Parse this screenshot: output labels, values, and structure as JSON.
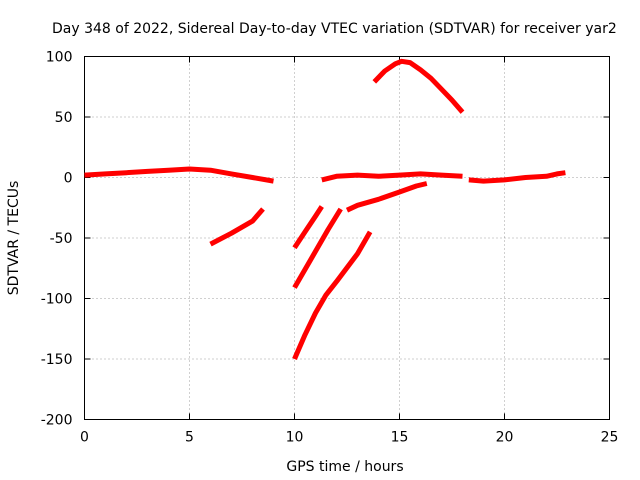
{
  "chart_data": {
    "type": "line",
    "title": "Day 348 of 2022, Sidereal Day-to-day VTEC variation (SDTVAR) for receiver yar2",
    "xlabel": "GPS time / hours",
    "ylabel": "SDTVAR / TECUs",
    "xlim": [
      0,
      25
    ],
    "ylim": [
      -200,
      100
    ],
    "xticks": [
      0,
      5,
      10,
      15,
      20,
      25
    ],
    "yticks": [
      -200,
      -150,
      -100,
      -50,
      0,
      50,
      100
    ],
    "grid": true,
    "legend": "none",
    "series_color": "#ff0000",
    "series": [
      {
        "x": [
          0.0,
          1.0,
          2.0,
          3.0,
          4.0,
          5.0,
          6.0,
          7.0,
          8.0,
          9.0
        ],
        "y": [
          2,
          3,
          4,
          5,
          6,
          7,
          6,
          3,
          0,
          -3
        ]
      },
      {
        "x": [
          6.0,
          7.0,
          8.0,
          8.5
        ],
        "y": [
          -55,
          -46,
          -36,
          -26
        ]
      },
      {
        "x": [
          10.0,
          10.5,
          11.0,
          11.3
        ],
        "y": [
          -58,
          -45,
          -32,
          -24
        ]
      },
      {
        "x": [
          10.0,
          10.8,
          11.6,
          12.2
        ],
        "y": [
          -91,
          -67,
          -43,
          -26
        ]
      },
      {
        "x": [
          10.0,
          10.5,
          11.0,
          11.5,
          12.0,
          13.0,
          13.6
        ],
        "y": [
          -150,
          -130,
          -112,
          -97,
          -86,
          -63,
          -45
        ]
      },
      {
        "x": [
          12.5,
          13.0,
          14.0,
          15.0,
          15.8,
          16.3
        ],
        "y": [
          -27,
          -23,
          -18,
          -12,
          -7,
          -5
        ]
      },
      {
        "x": [
          11.3,
          12.0,
          13.0,
          14.0,
          15.0,
          16.0,
          17.0,
          18.0
        ],
        "y": [
          -2,
          1,
          2,
          1,
          2,
          3,
          2,
          1
        ]
      },
      {
        "x": [
          13.8,
          14.3,
          14.8,
          15.1,
          15.5,
          16.0,
          16.5,
          17.0,
          17.5,
          18.0
        ],
        "y": [
          79,
          88,
          94,
          96,
          95,
          89,
          82,
          73,
          64,
          54
        ]
      },
      {
        "x": [
          18.3,
          19.0,
          20.0,
          21.0,
          22.0,
          22.5,
          22.9
        ],
        "y": [
          -2,
          -3,
          -2,
          0,
          1,
          3,
          4
        ]
      }
    ]
  }
}
